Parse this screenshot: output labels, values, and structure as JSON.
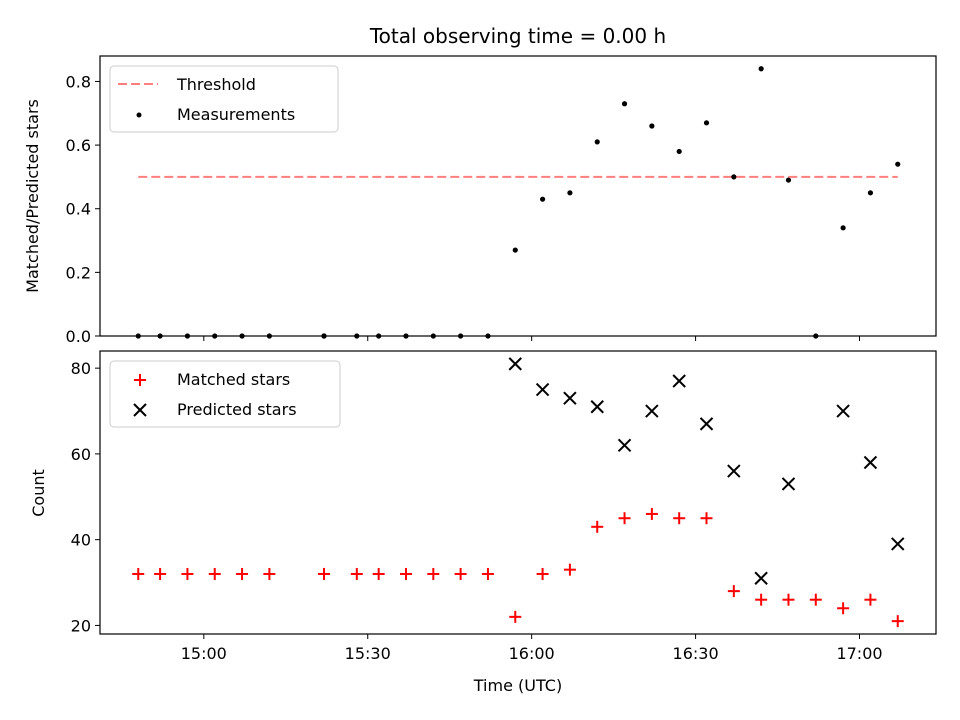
{
  "chart_data": [
    {
      "type": "scatter",
      "title": "Total observing time = 0.00 h",
      "ylabel": "Matched/Predicted stars",
      "xlabel": "",
      "ylim": [
        0,
        0.88
      ],
      "yticks": [
        "0.0",
        "0.2",
        "0.4",
        "0.6",
        "0.8"
      ],
      "ytick_values": [
        0.0,
        0.2,
        0.4,
        0.6,
        0.8
      ],
      "legend_position": "upper-left",
      "threshold": {
        "name": "Threshold",
        "value": 0.5,
        "x_start": "14:48",
        "x_end": "17:07",
        "color": "#ff7f7f"
      },
      "series": [
        {
          "name": "Measurements",
          "marker": "dot",
          "color": "#000000",
          "points": [
            [
              "14:48",
              0.0
            ],
            [
              "14:52",
              0.0
            ],
            [
              "14:57",
              0.0
            ],
            [
              "15:02",
              0.0
            ],
            [
              "15:07",
              0.0
            ],
            [
              "15:12",
              0.0
            ],
            [
              "15:22",
              0.0
            ],
            [
              "15:22",
              0.0
            ],
            [
              "15:28",
              0.0
            ],
            [
              "15:32",
              0.0
            ],
            [
              "15:37",
              0.0
            ],
            [
              "15:42",
              0.0
            ],
            [
              "15:47",
              0.0
            ],
            [
              "15:52",
              0.0
            ],
            [
              "15:57",
              0.27
            ],
            [
              "16:02",
              0.43
            ],
            [
              "16:07",
              0.45
            ],
            [
              "16:12",
              0.61
            ],
            [
              "16:17",
              0.73
            ],
            [
              "16:22",
              0.66
            ],
            [
              "16:27",
              0.58
            ],
            [
              "16:32",
              0.67
            ],
            [
              "16:37",
              0.5
            ],
            [
              "16:42",
              0.84
            ],
            [
              "16:47",
              0.49
            ],
            [
              "16:52",
              0.0
            ],
            [
              "16:57",
              0.34
            ],
            [
              "17:02",
              0.45
            ],
            [
              "17:07",
              0.54
            ]
          ]
        }
      ]
    },
    {
      "type": "scatter",
      "title": "",
      "ylabel": "Count",
      "xlabel": "Time (UTC)",
      "ylim": [
        18,
        84
      ],
      "yticks": [
        "20",
        "40",
        "60",
        "80"
      ],
      "ytick_values": [
        20,
        40,
        60,
        80
      ],
      "xticks": [
        "15:00",
        "15:30",
        "16:00",
        "16:30",
        "17:00"
      ],
      "legend_position": "upper-left",
      "series": [
        {
          "name": "Matched stars",
          "marker": "plus",
          "color": "#ff0000",
          "points": [
            [
              "14:48",
              32
            ],
            [
              "14:52",
              32
            ],
            [
              "14:57",
              32
            ],
            [
              "15:02",
              32
            ],
            [
              "15:07",
              32
            ],
            [
              "15:12",
              32
            ],
            [
              "15:22",
              32
            ],
            [
              "15:22",
              32
            ],
            [
              "15:28",
              32
            ],
            [
              "15:32",
              32
            ],
            [
              "15:37",
              32
            ],
            [
              "15:42",
              32
            ],
            [
              "15:47",
              32
            ],
            [
              "15:52",
              32
            ],
            [
              "15:57",
              22
            ],
            [
              "16:02",
              32
            ],
            [
              "16:07",
              33
            ],
            [
              "16:12",
              43
            ],
            [
              "16:17",
              45
            ],
            [
              "16:22",
              46
            ],
            [
              "16:27",
              45
            ],
            [
              "16:32",
              45
            ],
            [
              "16:37",
              28
            ],
            [
              "16:42",
              26
            ],
            [
              "16:47",
              26
            ],
            [
              "16:52",
              26
            ],
            [
              "16:57",
              24
            ],
            [
              "17:02",
              26
            ],
            [
              "17:07",
              21
            ]
          ]
        },
        {
          "name": "Predicted stars",
          "marker": "x",
          "color": "#000000",
          "points": [
            [
              "15:57",
              81
            ],
            [
              "16:02",
              75
            ],
            [
              "16:07",
              73
            ],
            [
              "16:12",
              71
            ],
            [
              "16:17",
              62
            ],
            [
              "16:22",
              70
            ],
            [
              "16:27",
              77
            ],
            [
              "16:32",
              67
            ],
            [
              "16:37",
              56
            ],
            [
              "16:42",
              31
            ],
            [
              "16:47",
              53
            ],
            [
              "16:57",
              70
            ],
            [
              "17:02",
              58
            ],
            [
              "17:07",
              39
            ]
          ]
        }
      ]
    }
  ]
}
